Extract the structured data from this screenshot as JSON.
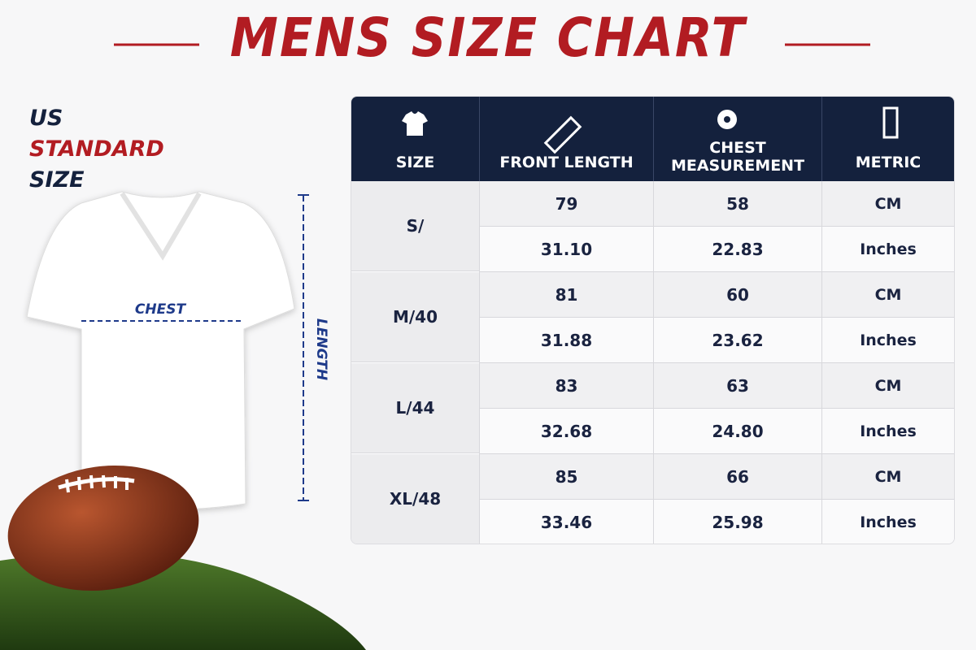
{
  "header": {
    "title": "MENS SIZE CHART"
  },
  "side_label": [
    "US",
    "STANDARD",
    "SIZE"
  ],
  "shirt": {
    "chest": "CHEST",
    "length": "LENGTH"
  },
  "table": {
    "headers": [
      "SIZE",
      "FRONT LENGTH",
      "CHEST MEASUREMENT",
      "METRIC"
    ],
    "groups": [
      {
        "size": "S/",
        "rows": [
          [
            "79",
            "58",
            "CM"
          ],
          [
            "31.10",
            "22.83",
            "Inches"
          ]
        ]
      },
      {
        "size": "M/40",
        "rows": [
          [
            "81",
            "60",
            "CM"
          ],
          [
            "31.88",
            "23.62",
            "Inches"
          ]
        ]
      },
      {
        "size": "L/44",
        "rows": [
          [
            "83",
            "63",
            "CM"
          ],
          [
            "32.68",
            "24.80",
            "Inches"
          ]
        ]
      },
      {
        "size": "XL/48",
        "rows": [
          [
            "85",
            "66",
            "CM"
          ],
          [
            "33.46",
            "25.98",
            "Inches"
          ]
        ]
      }
    ]
  }
}
